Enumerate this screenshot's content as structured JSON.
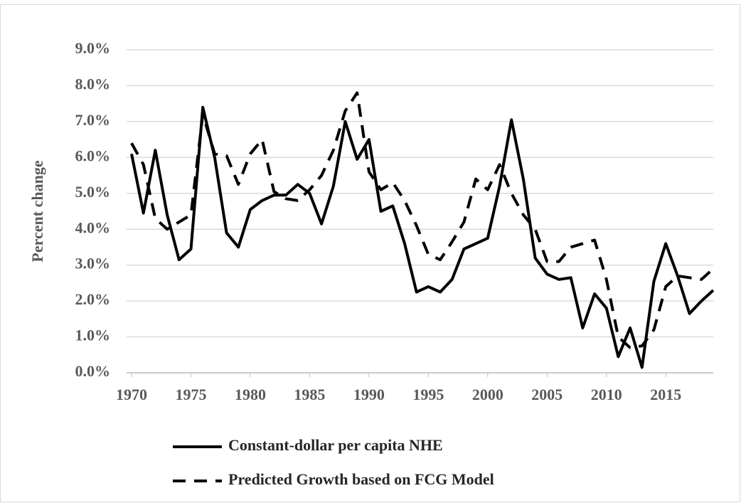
{
  "chart_data": {
    "type": "line",
    "y_label": "Percent change",
    "x": [
      1970,
      1971,
      1972,
      1973,
      1974,
      1975,
      1976,
      1977,
      1978,
      1979,
      1980,
      1981,
      1982,
      1983,
      1984,
      1985,
      1986,
      1987,
      1988,
      1989,
      1990,
      1991,
      1992,
      1993,
      1994,
      1995,
      1996,
      1997,
      1998,
      1999,
      2000,
      2001,
      2002,
      2003,
      2004,
      2005,
      2006,
      2007,
      2008,
      2009,
      2010,
      2011,
      2012,
      2013,
      2014,
      2015,
      2016,
      2017,
      2018,
      2019
    ],
    "series": [
      {
        "name": "Constant-dollar per capita NHE",
        "color": "#000000",
        "dash": "solid",
        "values": [
          6.1,
          4.45,
          6.2,
          4.4,
          3.15,
          3.45,
          7.4,
          6.0,
          3.9,
          3.5,
          4.55,
          4.8,
          4.95,
          4.95,
          5.25,
          5.0,
          4.15,
          5.2,
          7.0,
          5.95,
          6.5,
          4.5,
          4.65,
          3.6,
          2.25,
          2.4,
          2.25,
          2.6,
          3.45,
          3.6,
          3.75,
          5.2,
          7.05,
          5.4,
          3.2,
          2.75,
          2.6,
          2.65,
          1.25,
          2.2,
          1.8,
          0.45,
          1.25,
          0.15,
          2.55,
          3.6,
          2.7,
          1.65,
          2.0,
          2.3
        ]
      },
      {
        "name": "Predicted Growth based on FCG Model",
        "color": "#000000",
        "dash": "dashed",
        "values": [
          6.4,
          5.8,
          4.3,
          4.0,
          4.2,
          4.4,
          7.2,
          6.1,
          6.05,
          5.25,
          6.1,
          6.5,
          5.05,
          4.85,
          4.8,
          5.1,
          5.5,
          6.2,
          7.3,
          7.8,
          5.6,
          5.1,
          5.3,
          4.8,
          4.1,
          3.3,
          3.15,
          3.65,
          4.2,
          5.4,
          5.1,
          5.8,
          5.0,
          4.4,
          4.0,
          3.1,
          3.1,
          3.5,
          3.6,
          3.7,
          2.6,
          1.0,
          0.7,
          0.75,
          1.2,
          2.4,
          2.7,
          2.65,
          2.6,
          2.9
        ]
      }
    ],
    "xlim": [
      1970,
      2019
    ],
    "xticks": [
      1970,
      1975,
      1980,
      1985,
      1990,
      1995,
      2000,
      2005,
      2010,
      2015
    ],
    "ylim": [
      0,
      9
    ],
    "yticks": [
      {
        "value": 0,
        "label": "0.0%"
      },
      {
        "value": 1,
        "label": "1.0%"
      },
      {
        "value": 2,
        "label": "2.0%"
      },
      {
        "value": 3,
        "label": "3.0%"
      },
      {
        "value": 4,
        "label": "4.0%"
      },
      {
        "value": 5,
        "label": "5.0%"
      },
      {
        "value": 6,
        "label": "6.0%"
      },
      {
        "value": 7,
        "label": "7.0%"
      },
      {
        "value": 8,
        "label": "8.0%"
      },
      {
        "value": 9,
        "label": "9.0%"
      }
    ],
    "grid": true,
    "legend": "bottom"
  }
}
